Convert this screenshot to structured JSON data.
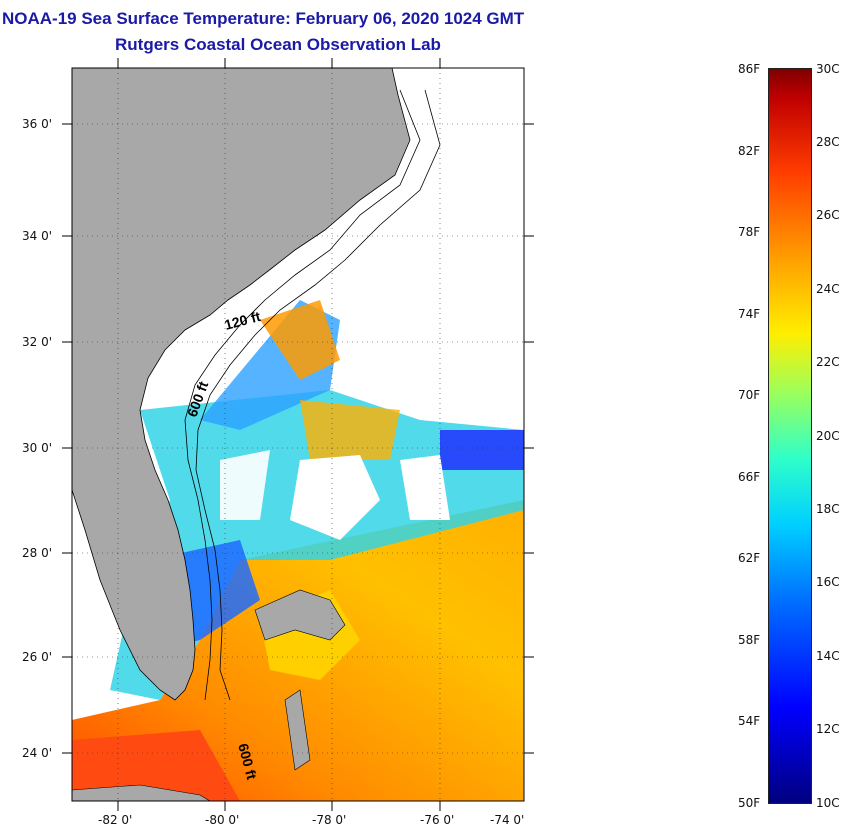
{
  "header": {
    "title": "NOAA-19 Sea Surface Temperature:  February 06, 2020 1024 GMT",
    "subtitle": "Rutgers Coastal Ocean Observation Lab"
  },
  "map": {
    "lat_labels": [
      "36 0'",
      "34 0'",
      "32 0'",
      "30 0'",
      "28 0'",
      "26 0'",
      "24 0'"
    ],
    "lon_labels": [
      "-82 0'",
      "-80 0'",
      "-78 0'",
      "-76 0'",
      "-74 0'"
    ],
    "isobath_labels": [
      "120 ft",
      "600 ft",
      "600 ft"
    ],
    "colors": {
      "land": "#a8a8a8",
      "cloud": "#ffffff",
      "frame": "#000000"
    }
  },
  "colorbar": {
    "fahrenheit_labels": [
      "86F",
      "82F",
      "78F",
      "74F",
      "70F",
      "66F",
      "62F",
      "58F",
      "54F",
      "50F"
    ],
    "celsius_labels": [
      "30C",
      "28C",
      "26C",
      "24C",
      "22C",
      "20C",
      "18C",
      "16C",
      "14C",
      "12C",
      "10C"
    ],
    "colors": [
      "#00007f",
      "#0000ff",
      "#00d0ff",
      "#9dff5a",
      "#ffee00",
      "#ff3c00",
      "#7f0000"
    ]
  }
}
